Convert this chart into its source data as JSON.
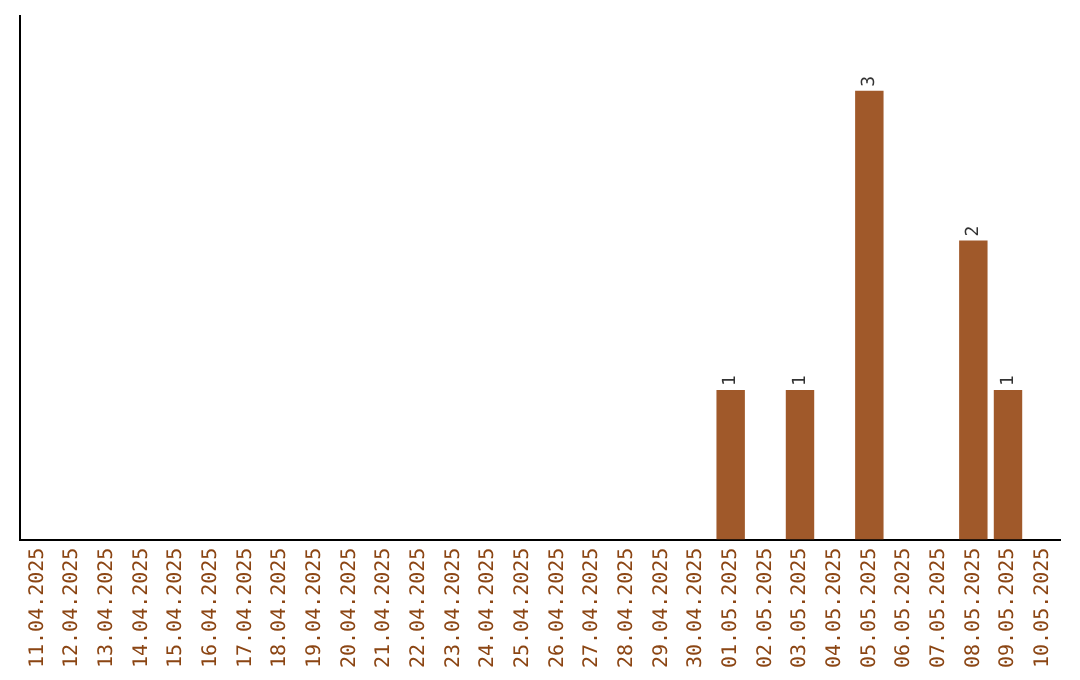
{
  "chart_data": {
    "type": "bar",
    "categories": [
      "11.04.2025",
      "12.04.2025",
      "13.04.2025",
      "14.04.2025",
      "15.04.2025",
      "16.04.2025",
      "17.04.2025",
      "18.04.2025",
      "19.04.2025",
      "20.04.2025",
      "21.04.2025",
      "22.04.2025",
      "23.04.2025",
      "24.04.2025",
      "25.04.2025",
      "26.04.2025",
      "27.04.2025",
      "28.04.2025",
      "29.04.2025",
      "30.04.2025",
      "01.05.2025",
      "02.05.2025",
      "03.05.2025",
      "04.05.2025",
      "05.05.2025",
      "06.05.2025",
      "07.05.2025",
      "08.05.2025",
      "09.05.2025",
      "10.05.2025"
    ],
    "values": [
      null,
      null,
      null,
      null,
      null,
      null,
      null,
      null,
      null,
      null,
      null,
      null,
      null,
      null,
      null,
      null,
      null,
      null,
      null,
      null,
      1,
      null,
      1,
      null,
      3,
      null,
      null,
      2,
      1,
      null
    ],
    "data_labels": true,
    "color": "#a0592a",
    "grid": false,
    "legend": false,
    "tick_labels": "x"
  }
}
